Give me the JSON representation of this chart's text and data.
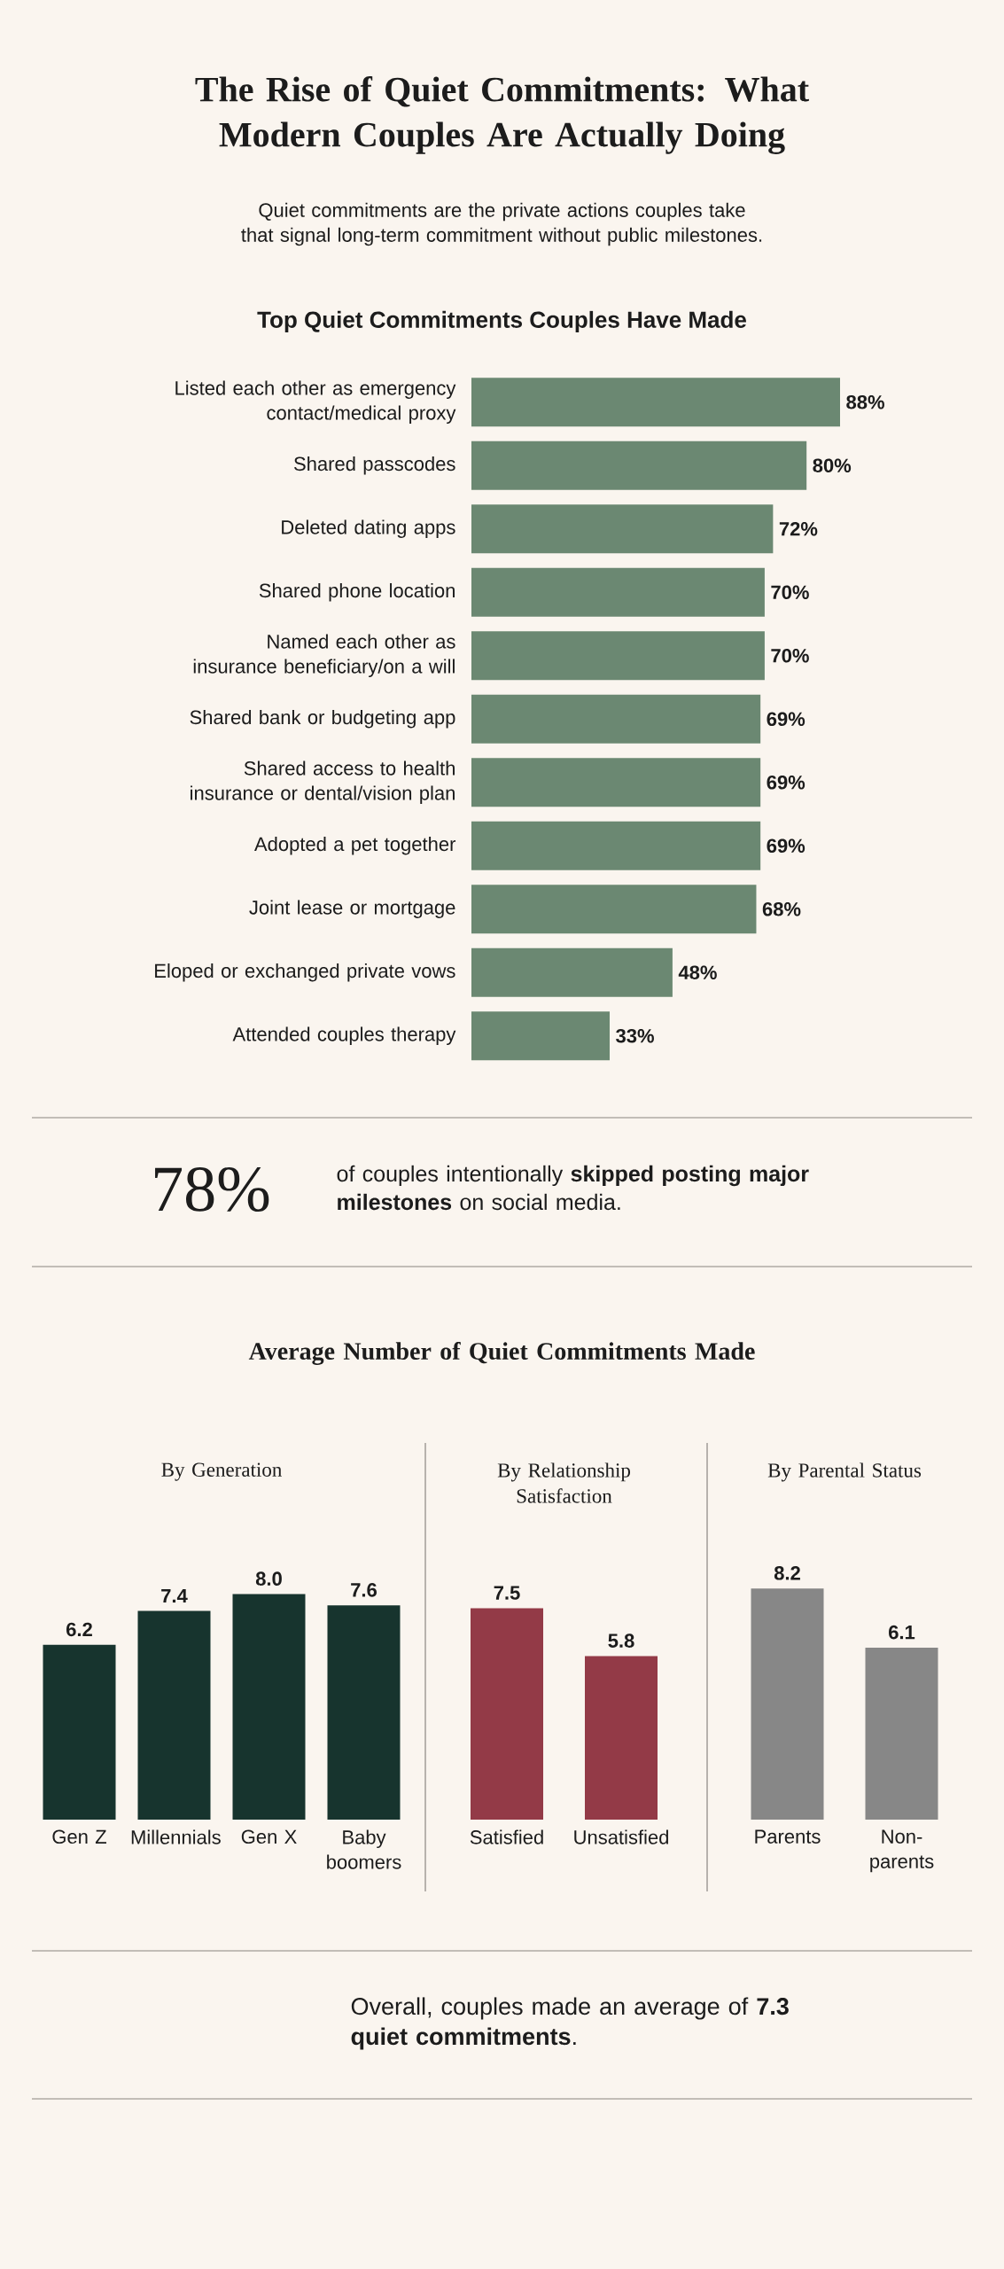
{
  "chart_data": [
    {
      "type": "other",
      "title": "The Rise of Quiet Commitments: What Modern Couples Are Actually Doing",
      "subtitle": "Quiet commitments are the private actions couples take that signal long-term commitment without public milestones."
    },
    {
      "type": "bar",
      "orientation": "horizontal",
      "title": "Top Quiet Commitments Couples Have Made",
      "color": "#6b8872",
      "categories": [
        "Listed each other as emergency contact/medical proxy",
        "Shared passcodes",
        "Deleted dating apps",
        "Shared phone location",
        "Named each other as insurance beneficiary/on a will",
        "Shared bank or budgeting app",
        "Shared access to health insurance or dental/vision plan",
        "Adopted a pet together",
        "Joint lease or mortgage",
        "Eloped or exchanged private vows",
        "Attended couples therapy"
      ],
      "values": [
        88,
        80,
        72,
        70,
        70,
        69,
        69,
        69,
        68,
        48,
        33
      ],
      "value_labels": [
        "88%",
        "80%",
        "72%",
        "70%",
        "70%",
        "69%",
        "69%",
        "69%",
        "68%",
        "48%",
        "33%"
      ]
    },
    {
      "type": "other",
      "annotations": [
        "78%",
        "of couples intentionally **skipped posting major milestones** on social media."
      ]
    },
    {
      "type": "other",
      "title": "Average Number of Quiet Commitments Made"
    },
    {
      "type": "bar",
      "title": "By Generation",
      "color": "#17342e",
      "categories": [
        "Gen Z",
        "Millennials",
        "Gen X",
        "Baby boomers"
      ],
      "values": [
        6.2,
        7.4,
        8.0,
        7.6
      ],
      "value_labels": [
        "6.2",
        "7.4",
        "8.0",
        "7.6"
      ]
    },
    {
      "type": "bar",
      "title": "By Relationship Satisfaction",
      "color": "#933a47",
      "categories": [
        "Satisfied",
        "Unsatisfied"
      ],
      "values": [
        7.5,
        5.8
      ],
      "value_labels": [
        "7.5",
        "5.8"
      ]
    },
    {
      "type": "bar",
      "title": "By Parental Status",
      "color": "#878787",
      "categories": [
        "Parents",
        "Non-parents"
      ],
      "values": [
        8.2,
        6.1
      ],
      "value_labels": [
        "8.2",
        "6.1"
      ]
    },
    {
      "type": "other",
      "annotations": [
        "Overall, couples made an average of **7.3 quiet commitments**."
      ]
    }
  ]
}
